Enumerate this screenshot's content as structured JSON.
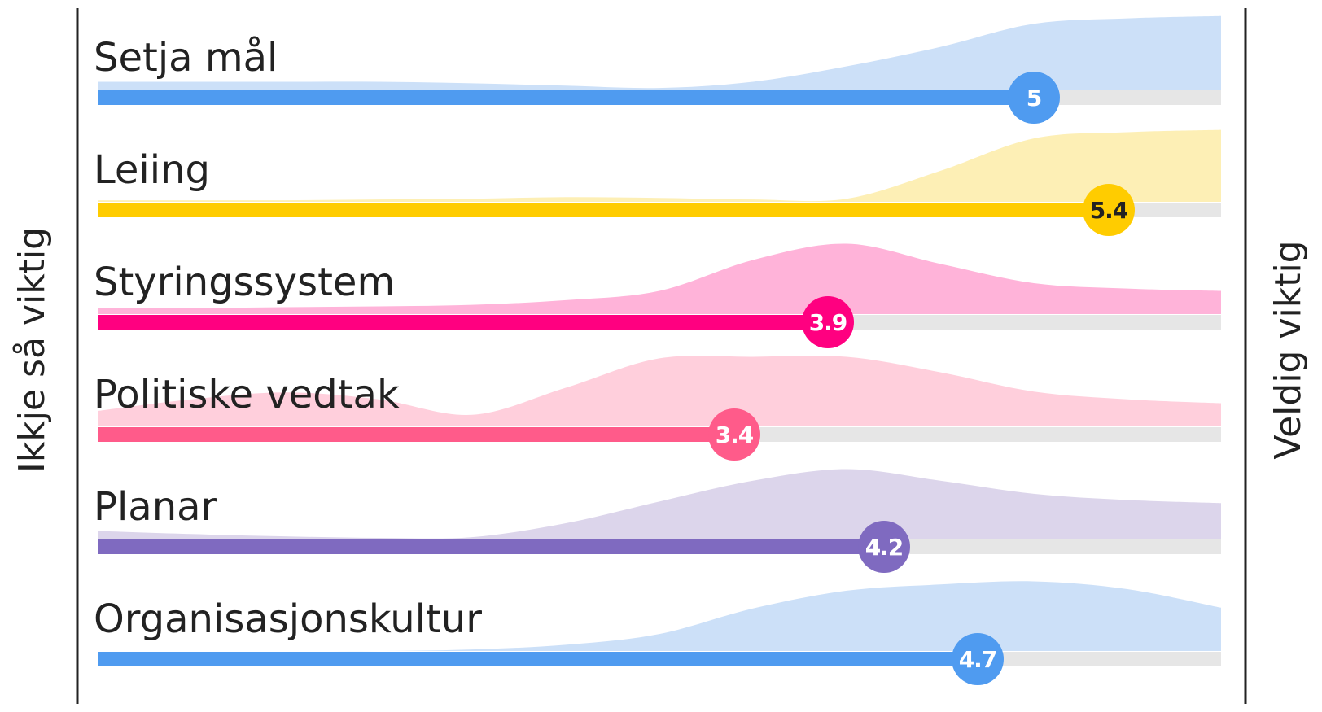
{
  "chart_data": {
    "type": "ridgeline",
    "left_label": "Ikkje så viktig",
    "right_label": "Veldig viktig",
    "xlim": [
      0,
      6
    ],
    "density_x": [
      0,
      0.5,
      1,
      1.5,
      2,
      2.5,
      3,
      3.5,
      4,
      4.5,
      5,
      5.5,
      6
    ],
    "density_ylim": [
      0,
      100
    ],
    "track_color": "#e6e6e6",
    "series": [
      {
        "name": "Setja mål",
        "value": 5,
        "color": "#4f9bf0",
        "area_color": "#cce0f8",
        "label_color": "#ffffff",
        "density": [
          10,
          10,
          10,
          10,
          8,
          5,
          2,
          10,
          30,
          55,
          85,
          92,
          95
        ]
      },
      {
        "name": "Leiing",
        "value": 5.4,
        "color": "#ffcc00",
        "area_color": "#fdefb5",
        "label_color": "#222222",
        "density": [
          2,
          2,
          2,
          3,
          4,
          6,
          5,
          3,
          4,
          40,
          82,
          90,
          93
        ]
      },
      {
        "name": "Styringssystem",
        "value": 3.9,
        "color": "#ff0080",
        "area_color": "#ffb3d9",
        "label_color": "#ffffff",
        "density": [
          8,
          8,
          9,
          10,
          12,
          18,
          30,
          70,
          91,
          65,
          40,
          33,
          30
        ]
      },
      {
        "name": "Politiske vedtak",
        "value": 3.4,
        "color": "#ff5b8a",
        "area_color": "#ffcfdc",
        "label_color": "#ffffff",
        "density": [
          20,
          35,
          44,
          35,
          15,
          50,
          88,
          90,
          90,
          70,
          45,
          35,
          30
        ]
      },
      {
        "name": "Planar",
        "value": 4.2,
        "color": "#7f6ac0",
        "area_color": "#dcd5eb",
        "label_color": "#ffffff",
        "density": [
          10,
          6,
          3,
          1,
          2,
          20,
          48,
          75,
          90,
          75,
          58,
          50,
          46
        ]
      },
      {
        "name": "Organisasjonskultur",
        "value": 4.7,
        "color": "#4f9bf0",
        "area_color": "#cce0f8",
        "label_color": "#ffffff",
        "density": [
          0,
          0,
          0,
          0,
          2,
          8,
          22,
          55,
          78,
          86,
          90,
          80,
          56
        ]
      }
    ]
  }
}
